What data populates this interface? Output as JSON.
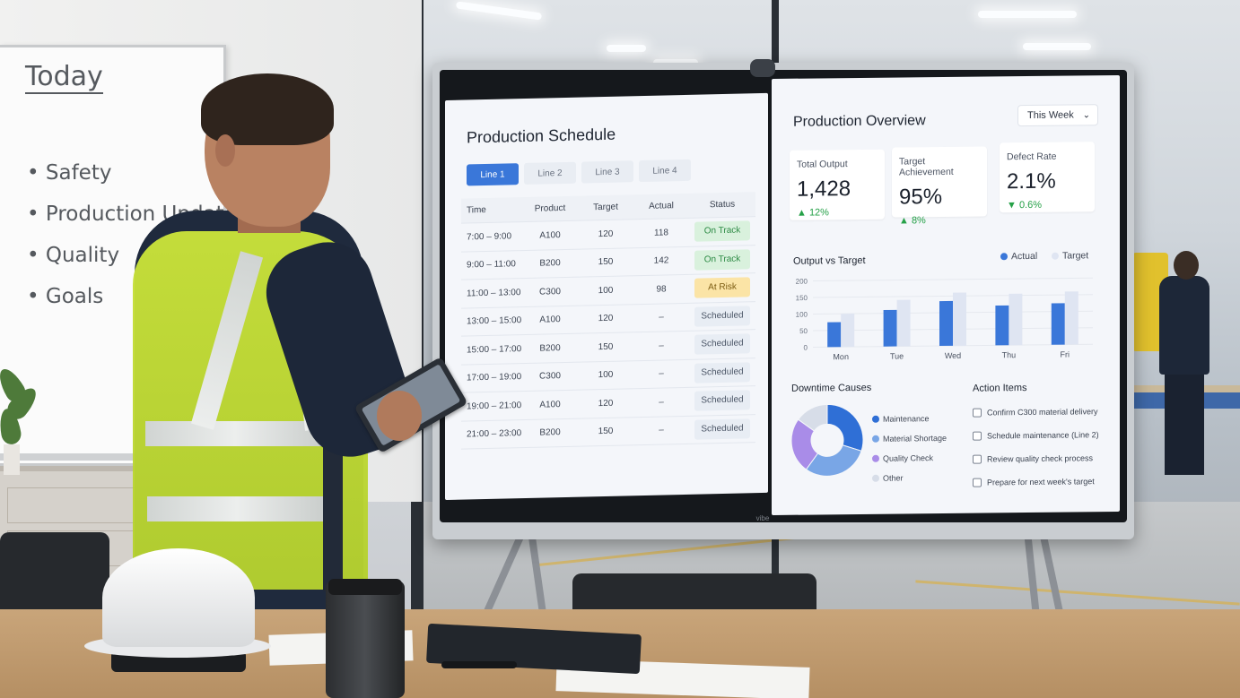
{
  "whiteboard": {
    "title": "Today",
    "items": [
      "• Safety",
      "• Production Update",
      "• Quality",
      "• Goals"
    ]
  },
  "display": {
    "brand": "vibe",
    "schedule": {
      "title": "Production Schedule",
      "tabs": [
        {
          "label": "Line 1",
          "active": true
        },
        {
          "label": "Line 2",
          "active": false
        },
        {
          "label": "Line 3",
          "active": false
        },
        {
          "label": "Line 4",
          "active": false
        }
      ],
      "columns": [
        "Time",
        "Product",
        "Target",
        "Actual",
        "Status"
      ],
      "rows": [
        {
          "time": "7:00 – 9:00",
          "product": "A100",
          "target": "120",
          "actual": "118",
          "status": "On Track",
          "kind": "ontrack"
        },
        {
          "time": "9:00 – 11:00",
          "product": "B200",
          "target": "150",
          "actual": "142",
          "status": "On Track",
          "kind": "ontrack"
        },
        {
          "time": "11:00 – 13:00",
          "product": "C300",
          "target": "100",
          "actual": "98",
          "status": "At Risk",
          "kind": "atrisk"
        },
        {
          "time": "13:00 – 15:00",
          "product": "A100",
          "target": "120",
          "actual": "–",
          "status": "Scheduled",
          "kind": "sched"
        },
        {
          "time": "15:00 – 17:00",
          "product": "B200",
          "target": "150",
          "actual": "–",
          "status": "Scheduled",
          "kind": "sched"
        },
        {
          "time": "17:00 – 19:00",
          "product": "C300",
          "target": "100",
          "actual": "–",
          "status": "Scheduled",
          "kind": "sched"
        },
        {
          "time": "19:00 – 21:00",
          "product": "A100",
          "target": "120",
          "actual": "–",
          "status": "Scheduled",
          "kind": "sched"
        },
        {
          "time": "21:00 – 23:00",
          "product": "B200",
          "target": "150",
          "actual": "–",
          "status": "Scheduled",
          "kind": "sched"
        }
      ]
    },
    "overview": {
      "title": "Production Overview",
      "period": "This Week",
      "kpis": [
        {
          "label": "Total Output",
          "value": "1,428",
          "delta": "▲ 12%"
        },
        {
          "label": "Target Achievement",
          "value": "95%",
          "delta": "▲ 8%"
        },
        {
          "label": "Defect Rate",
          "value": "2.1%",
          "delta": "▼ 0.6%"
        }
      ],
      "chart_title": "Output vs Target",
      "downtime_title": "Downtime Causes",
      "action_title": "Action Items",
      "actions": [
        "Confirm C300 material delivery",
        "Schedule maintenance (Line 2)",
        "Review quality check process",
        "Prepare for next week's target"
      ]
    }
  },
  "colors": {
    "accent": "#3a77d9",
    "target_bar": "#dfe5f2",
    "on_track": "#d9f1dd",
    "at_risk": "#fbe4a6",
    "scheduled": "#e8edf4",
    "delta": "#26a148"
  },
  "chart_data": [
    {
      "type": "bar",
      "categories": [
        "Mon",
        "Tue",
        "Wed",
        "Thu",
        "Fri"
      ],
      "series": [
        {
          "name": "Actual",
          "values": [
            75,
            110,
            135,
            120,
            125
          ],
          "color": "#3a77d9"
        },
        {
          "name": "Target",
          "values": [
            100,
            140,
            160,
            155,
            160
          ],
          "color": "#dfe5f2"
        }
      ],
      "yticks": [
        "0",
        "50",
        "100",
        "150",
        "200"
      ],
      "ylim": [
        0,
        200
      ],
      "legend": "top-right"
    },
    {
      "type": "pie",
      "donut": true,
      "categories": [
        "Maintenance",
        "Material Shortage",
        "Quality Check",
        "Other"
      ],
      "values": [
        30,
        30,
        25,
        15
      ],
      "colors": [
        "#2f6fd6",
        "#79a6e6",
        "#a98ce8",
        "#d7dde8"
      ],
      "legend": "right"
    }
  ]
}
